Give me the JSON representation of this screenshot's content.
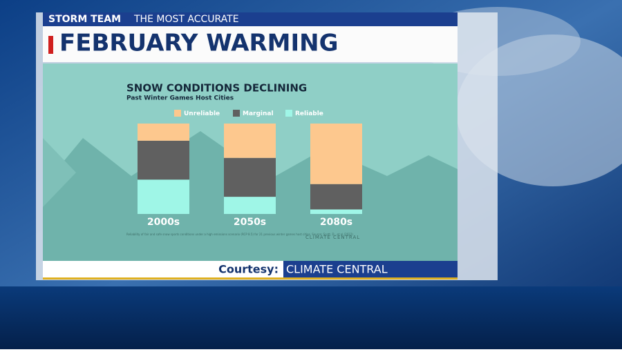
{
  "header": {
    "brand": "STORM TEAM",
    "tagline": "THE MOST ACCURATE",
    "title": "FEBRUARY WARMING"
  },
  "chart_data": {
    "type": "stacked-bar",
    "title": "SNOW CONDITIONS DECLINING",
    "subtitle": "Past Winter Games Host Cities",
    "categories": [
      "2000s",
      "2050s",
      "2080s"
    ],
    "series": [
      {
        "name": "Unreliable",
        "color": "#fdc88e",
        "values": [
          19,
          38,
          67
        ]
      },
      {
        "name": "Marginal",
        "color": "#606060",
        "values": [
          43,
          43,
          28
        ]
      },
      {
        "name": "Reliable",
        "color": "#9ff6e7",
        "values": [
          38,
          19,
          5
        ]
      }
    ],
    "note": "Reliability of fair and safe snow sports conditions under a high emissions scenario (RCP 8.5) for 21 previous winter games host cities. Source: Scott, D., et al (2022)",
    "logo": "CLIMATE CENTRAL"
  },
  "footer": {
    "label": "Courtesy:",
    "source": "CLIMATE CENTRAL"
  }
}
